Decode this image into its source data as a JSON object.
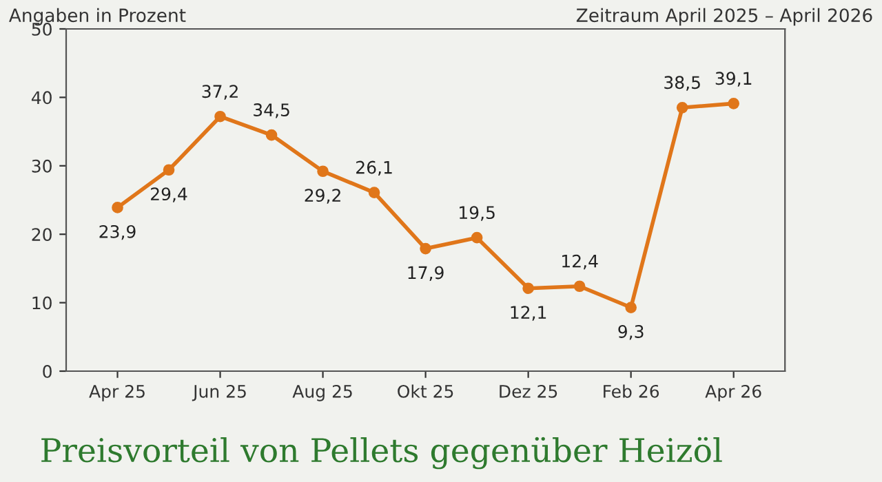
{
  "chart_data": {
    "type": "line",
    "title": "Preisvorteil von Pellets gegenüber Heizöl",
    "subtitle": "Zeitraum April 2025 – April 2026",
    "ylabel": "Angaben in Prozent",
    "categories": [
      "Apr 25",
      null,
      "Jun 25",
      null,
      "Aug 25",
      null,
      "Okt 25",
      null,
      "Dez 25",
      null,
      "Feb 26",
      null,
      "Apr 26"
    ],
    "series": [
      {
        "color": "#e0761a",
        "values": [
          23.9,
          29.4,
          37.2,
          34.5,
          29.2,
          26.1,
          17.9,
          19.5,
          12.1,
          12.4,
          9.3,
          38.5,
          39.1
        ],
        "value_labels": [
          "23,9",
          "29,4",
          "37,2",
          "34,5",
          "29,2",
          "26,1",
          "17,9",
          "19,5",
          "12,1",
          "12,4",
          "9,3",
          "38,5",
          "39,1"
        ]
      }
    ],
    "ylim": [
      0,
      50
    ],
    "yticks": [
      0,
      10,
      20,
      30,
      40,
      50
    ],
    "marker": "circle",
    "line_style": "solid",
    "grid": false,
    "legend": false
  }
}
